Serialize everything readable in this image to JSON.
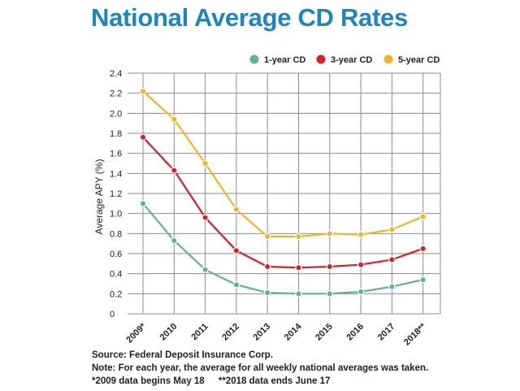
{
  "chart_data": {
    "type": "line",
    "title": "National Average CD Rates",
    "xlabel": "",
    "ylabel": "Average APY (%)",
    "ylim": [
      0,
      2.4
    ],
    "yticks": [
      "0",
      "0.2",
      "0.4",
      "0.6",
      "0.8",
      "1.0",
      "1.2",
      "1.4",
      "1.6",
      "1.8",
      "2.0",
      "2.2",
      "2.4"
    ],
    "categories": [
      "2009*",
      "2010",
      "2011",
      "2012",
      "2013",
      "2014",
      "2015",
      "2016",
      "2017",
      "2018**"
    ],
    "grid": true,
    "legend_position": "top-right",
    "series": [
      {
        "name": "1-year CD",
        "color": "#5cb592",
        "values": [
          1.1,
          0.73,
          0.44,
          0.29,
          0.21,
          0.2,
          0.2,
          0.22,
          0.27,
          0.34
        ]
      },
      {
        "name": "3-year CD",
        "color": "#d42026",
        "values": [
          1.76,
          1.43,
          0.96,
          0.63,
          0.47,
          0.46,
          0.47,
          0.49,
          0.54,
          0.65
        ]
      },
      {
        "name": "5-year CD",
        "color": "#efb525",
        "values": [
          2.22,
          1.94,
          1.5,
          1.04,
          0.77,
          0.77,
          0.8,
          0.79,
          0.84,
          0.97
        ]
      }
    ]
  },
  "notes": {
    "source": "Source: Federal Deposit Insurance Corp.",
    "note": "Note: For each year, the average for all weekly national averages was taken.",
    "footnote_2009": "*2009 data begins May 18",
    "footnote_2018": "**2018 data ends June 17"
  }
}
